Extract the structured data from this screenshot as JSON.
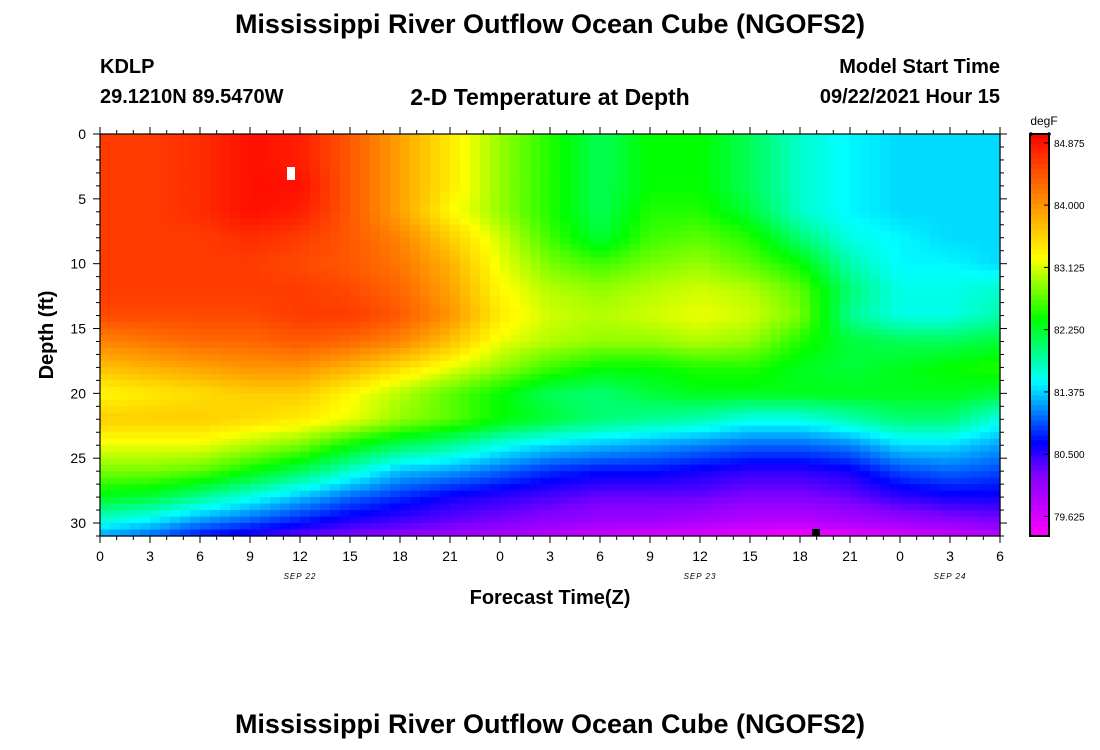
{
  "header": {
    "title": "Mississippi River Outflow Ocean Cube (NGOFS2)",
    "station_id": "KDLP",
    "station_coords": "29.1210N  89.5470W",
    "plot_title": "2-D Temperature at Depth",
    "model_start_label": "Model Start Time",
    "model_start_value": "09/22/2021 Hour 15"
  },
  "footer": {
    "title": "Mississippi River Outflow Ocean Cube (NGOFS2)"
  },
  "chart_data": {
    "type": "heatmap",
    "title": "2-D Temperature at Depth",
    "xlabel": "Forecast Time(Z)",
    "ylabel": "Depth (ft)",
    "x_tick_labels": [
      "0",
      "3",
      "6",
      "9",
      "12",
      "15",
      "18",
      "21",
      "0",
      "3",
      "6",
      "9",
      "12",
      "15",
      "18",
      "21",
      "0",
      "3",
      "6"
    ],
    "date_labels": [
      {
        "label": "SEP 22",
        "hour": 12
      },
      {
        "label": "SEP 23",
        "hour": 36
      },
      {
        "label": "SEP 24",
        "hour": 51
      }
    ],
    "xlim_hours": [
      0,
      54
    ],
    "y_ticks": [
      0,
      5,
      10,
      15,
      20,
      25,
      30
    ],
    "ylim": [
      0,
      31
    ],
    "y_inverted": true,
    "colorbar": {
      "unit": "degF",
      "ticks": [
        "84.875",
        "84.000",
        "83.125",
        "82.250",
        "81.375",
        "80.500",
        "79.625"
      ],
      "range": [
        79.35,
        85.0
      ],
      "colors": [
        "#ff00ff",
        "#c000ff",
        "#8000ff",
        "#0000ff",
        "#0080ff",
        "#00ffff",
        "#00ff80",
        "#00ff00",
        "#80ff00",
        "#ffff00",
        "#ffc000",
        "#ff8000",
        "#ff4000",
        "#ff0000"
      ]
    },
    "hours": [
      0,
      3,
      6,
      9,
      12,
      15,
      18,
      21,
      24,
      27,
      30,
      33,
      36,
      39,
      42,
      45,
      48,
      51,
      54
    ],
    "depths": [
      0,
      2,
      4,
      6,
      8,
      10,
      12,
      14,
      16,
      18,
      20,
      22,
      24,
      26,
      28,
      30,
      31
    ],
    "temperature_grid": [
      [
        84.6,
        84.6,
        84.7,
        84.9,
        84.8,
        84.4,
        83.9,
        83.4,
        82.9,
        82.5,
        82.1,
        82.4,
        82.4,
        82.1,
        81.7,
        81.5,
        81.4,
        81.4,
        81.4
      ],
      [
        84.6,
        84.6,
        84.7,
        84.9,
        84.8,
        84.4,
        83.9,
        83.4,
        82.9,
        82.5,
        82.1,
        82.4,
        82.4,
        82.1,
        81.7,
        81.5,
        81.4,
        81.4,
        81.4
      ],
      [
        84.6,
        84.6,
        84.7,
        84.9,
        84.9,
        84.4,
        83.9,
        83.4,
        82.9,
        82.5,
        82.1,
        82.4,
        82.4,
        82.1,
        81.7,
        81.5,
        81.4,
        81.4,
        81.4
      ],
      [
        84.6,
        84.6,
        84.7,
        84.9,
        84.8,
        84.4,
        83.9,
        83.3,
        82.9,
        82.5,
        82.1,
        82.5,
        82.5,
        82.2,
        81.7,
        81.5,
        81.4,
        81.4,
        81.4
      ],
      [
        84.6,
        84.6,
        84.6,
        84.7,
        84.6,
        84.4,
        84.1,
        83.6,
        83.1,
        82.6,
        82.2,
        82.6,
        82.7,
        82.5,
        82.0,
        81.6,
        81.5,
        81.4,
        81.4
      ],
      [
        84.6,
        84.6,
        84.6,
        84.6,
        84.5,
        84.4,
        84.2,
        83.8,
        83.2,
        82.8,
        82.6,
        82.8,
        82.9,
        82.7,
        82.4,
        81.8,
        81.5,
        81.5,
        81.4
      ],
      [
        84.6,
        84.6,
        84.6,
        84.6,
        84.6,
        84.5,
        84.3,
        83.9,
        83.3,
        83.0,
        82.9,
        83.0,
        83.1,
        83.0,
        82.7,
        82.0,
        81.6,
        81.6,
        81.7
      ],
      [
        84.5,
        84.5,
        84.5,
        84.5,
        84.6,
        84.6,
        84.4,
        84.0,
        83.4,
        83.1,
        83.0,
        83.1,
        83.2,
        83.1,
        82.8,
        81.9,
        81.6,
        81.6,
        81.8
      ],
      [
        84.1,
        84.2,
        84.3,
        84.3,
        84.4,
        84.3,
        84.1,
        83.7,
        83.2,
        83.0,
        82.9,
        82.9,
        83.0,
        82.9,
        82.5,
        82.2,
        82.1,
        82.1,
        82.2
      ],
      [
        83.7,
        83.8,
        83.9,
        84.0,
        84.0,
        83.8,
        83.5,
        83.2,
        82.9,
        82.6,
        82.4,
        82.4,
        82.5,
        82.5,
        82.3,
        82.2,
        82.3,
        82.4,
        82.5
      ],
      [
        83.3,
        83.4,
        83.5,
        83.6,
        83.6,
        83.3,
        83.0,
        82.7,
        82.4,
        82.1,
        82.0,
        82.2,
        82.3,
        82.3,
        82.3,
        82.3,
        82.3,
        82.3,
        82.2
      ],
      [
        83.6,
        83.6,
        83.6,
        83.5,
        83.4,
        83.2,
        82.9,
        82.7,
        82.4,
        82.2,
        82.0,
        81.9,
        81.8,
        81.6,
        81.6,
        81.8,
        82.0,
        82.0,
        81.6
      ],
      [
        83.2,
        83.2,
        83.2,
        83.0,
        82.8,
        82.4,
        82.1,
        81.9,
        81.6,
        81.4,
        81.3,
        81.2,
        81.1,
        81.0,
        81.0,
        81.1,
        81.4,
        81.4,
        81.2
      ],
      [
        82.8,
        82.8,
        82.7,
        82.4,
        82.1,
        81.7,
        81.3,
        81.2,
        81.0,
        80.8,
        80.7,
        80.7,
        80.6,
        80.5,
        80.5,
        80.6,
        80.9,
        81.0,
        80.9
      ],
      [
        82.3,
        82.2,
        81.9,
        81.6,
        81.3,
        81.0,
        80.8,
        80.6,
        80.5,
        80.4,
        80.3,
        80.3,
        80.3,
        80.2,
        80.2,
        80.3,
        80.5,
        80.6,
        80.6
      ],
      [
        81.6,
        81.4,
        81.1,
        80.9,
        80.7,
        80.5,
        80.4,
        80.3,
        80.2,
        80.1,
        80.0,
        80.0,
        79.9,
        79.8,
        79.8,
        79.9,
        80.0,
        80.1,
        80.2
      ],
      [
        81.2,
        81.0,
        80.7,
        80.5,
        80.3,
        80.2,
        80.1,
        80.0,
        79.9,
        79.8,
        79.7,
        79.6,
        79.6,
        79.5,
        79.4,
        79.5,
        79.6,
        79.7,
        79.8
      ]
    ]
  }
}
